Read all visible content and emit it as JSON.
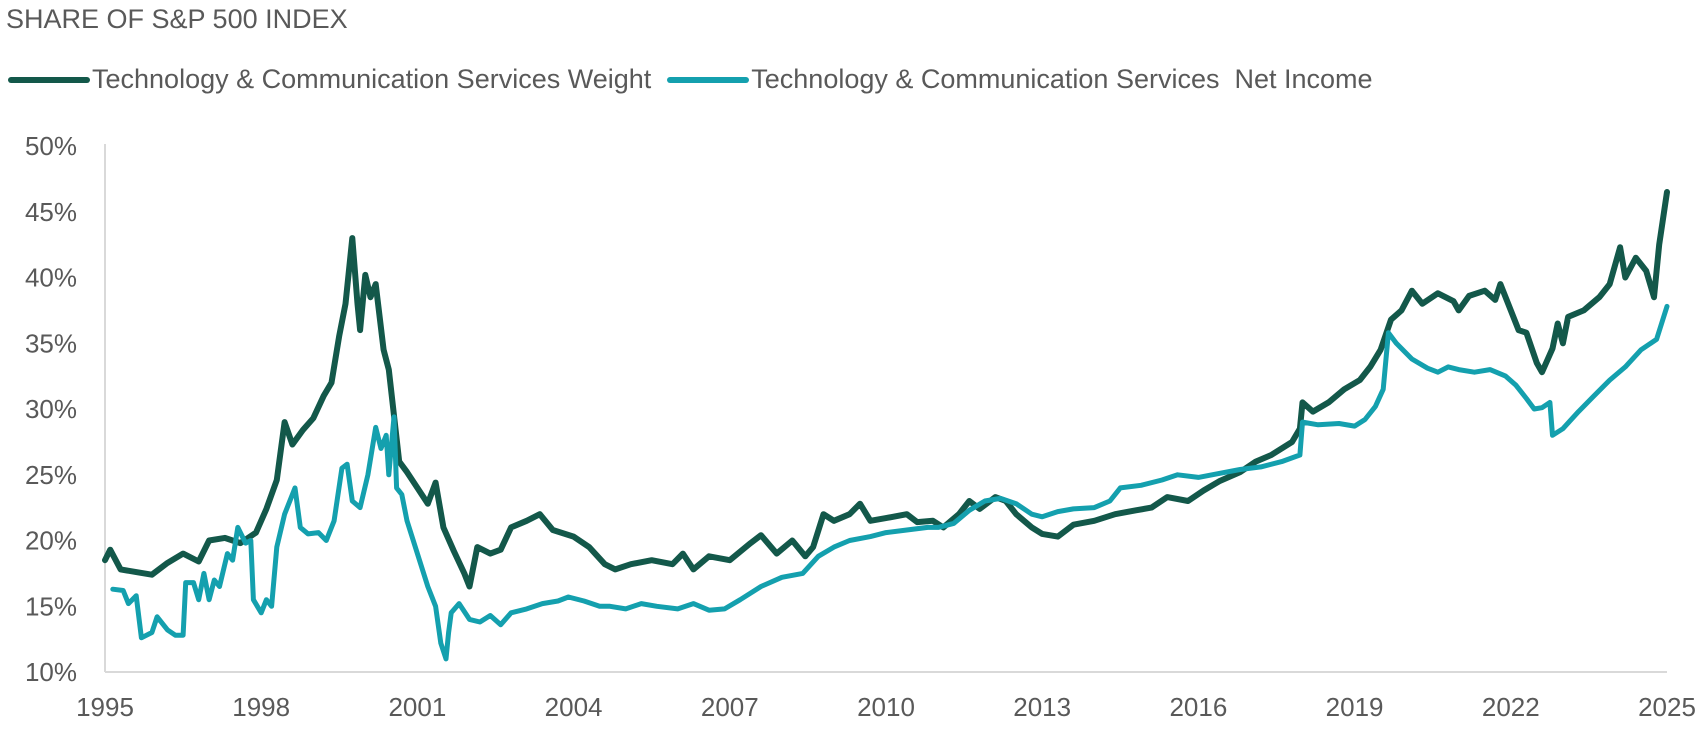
{
  "chart_data": {
    "type": "line",
    "title": "SHARE OF S&P 500 INDEX",
    "xlabel": "",
    "ylabel": "",
    "xlim": [
      1995,
      2025
    ],
    "ylim": [
      10,
      50
    ],
    "x_ticks": [
      "1995",
      "1998",
      "2001",
      "2004",
      "2007",
      "2010",
      "2013",
      "2016",
      "2019",
      "2022",
      "2025"
    ],
    "y_ticks": [
      "10%",
      "15%",
      "20%",
      "25%",
      "30%",
      "35%",
      "40%",
      "45%",
      "50%"
    ],
    "grid": false,
    "legend_position": "top-left",
    "series": [
      {
        "name": "Technology & Communication Services Weight",
        "color": "#13584a",
        "points": [
          [
            1995.0,
            18.5
          ],
          [
            1995.1,
            19.3
          ],
          [
            1995.3,
            17.8
          ],
          [
            1995.6,
            17.6
          ],
          [
            1995.9,
            17.4
          ],
          [
            1996.2,
            18.3
          ],
          [
            1996.5,
            19.0
          ],
          [
            1996.8,
            18.4
          ],
          [
            1997.0,
            20.0
          ],
          [
            1997.3,
            20.2
          ],
          [
            1997.6,
            19.8
          ],
          [
            1997.9,
            20.6
          ],
          [
            1998.1,
            22.4
          ],
          [
            1998.3,
            24.6
          ],
          [
            1998.45,
            29.0
          ],
          [
            1998.6,
            27.3
          ],
          [
            1998.8,
            28.4
          ],
          [
            1999.0,
            29.3
          ],
          [
            1999.2,
            31.0
          ],
          [
            1999.35,
            32.0
          ],
          [
            1999.5,
            35.6
          ],
          [
            1999.62,
            38.0
          ],
          [
            1999.75,
            43.0
          ],
          [
            1999.85,
            38.0
          ],
          [
            1999.9,
            36.0
          ],
          [
            2000.0,
            40.2
          ],
          [
            2000.1,
            38.5
          ],
          [
            2000.2,
            39.5
          ],
          [
            2000.35,
            34.5
          ],
          [
            2000.45,
            33.0
          ],
          [
            2000.55,
            29.5
          ],
          [
            2000.65,
            26.0
          ],
          [
            2000.8,
            25.2
          ],
          [
            2001.0,
            24.0
          ],
          [
            2001.2,
            22.8
          ],
          [
            2001.35,
            24.4
          ],
          [
            2001.5,
            21.0
          ],
          [
            2001.7,
            19.2
          ],
          [
            2001.9,
            17.5
          ],
          [
            2002.0,
            16.5
          ],
          [
            2002.15,
            19.5
          ],
          [
            2002.4,
            19.0
          ],
          [
            2002.6,
            19.3
          ],
          [
            2002.8,
            21.0
          ],
          [
            2003.1,
            21.5
          ],
          [
            2003.35,
            22.0
          ],
          [
            2003.6,
            20.8
          ],
          [
            2004.0,
            20.3
          ],
          [
            2004.3,
            19.5
          ],
          [
            2004.6,
            18.2
          ],
          [
            2004.8,
            17.8
          ],
          [
            2005.1,
            18.2
          ],
          [
            2005.5,
            18.5
          ],
          [
            2005.9,
            18.2
          ],
          [
            2006.1,
            19.0
          ],
          [
            2006.3,
            17.8
          ],
          [
            2006.6,
            18.8
          ],
          [
            2007.0,
            18.5
          ],
          [
            2007.4,
            19.8
          ],
          [
            2007.6,
            20.4
          ],
          [
            2007.9,
            19.0
          ],
          [
            2008.2,
            20.0
          ],
          [
            2008.45,
            18.8
          ],
          [
            2008.6,
            19.5
          ],
          [
            2008.8,
            22.0
          ],
          [
            2009.0,
            21.5
          ],
          [
            2009.3,
            22.0
          ],
          [
            2009.5,
            22.8
          ],
          [
            2009.7,
            21.5
          ],
          [
            2010.0,
            21.7
          ],
          [
            2010.4,
            22.0
          ],
          [
            2010.6,
            21.4
          ],
          [
            2010.9,
            21.5
          ],
          [
            2011.1,
            21.0
          ],
          [
            2011.4,
            22.0
          ],
          [
            2011.6,
            23.0
          ],
          [
            2011.8,
            22.4
          ],
          [
            2012.1,
            23.3
          ],
          [
            2012.3,
            23.0
          ],
          [
            2012.5,
            22.0
          ],
          [
            2012.8,
            21.0
          ],
          [
            2013.0,
            20.5
          ],
          [
            2013.3,
            20.3
          ],
          [
            2013.6,
            21.2
          ],
          [
            2014.0,
            21.5
          ],
          [
            2014.4,
            22.0
          ],
          [
            2014.8,
            22.3
          ],
          [
            2015.1,
            22.5
          ],
          [
            2015.4,
            23.3
          ],
          [
            2015.8,
            23.0
          ],
          [
            2016.1,
            23.8
          ],
          [
            2016.4,
            24.5
          ],
          [
            2016.8,
            25.2
          ],
          [
            2017.1,
            26.0
          ],
          [
            2017.4,
            26.5
          ],
          [
            2017.8,
            27.5
          ],
          [
            2017.95,
            28.5
          ],
          [
            2018.0,
            30.5
          ],
          [
            2018.2,
            29.8
          ],
          [
            2018.5,
            30.5
          ],
          [
            2018.8,
            31.5
          ],
          [
            2019.1,
            32.2
          ],
          [
            2019.3,
            33.2
          ],
          [
            2019.5,
            34.5
          ],
          [
            2019.7,
            36.8
          ],
          [
            2019.9,
            37.5
          ],
          [
            2020.1,
            39.0
          ],
          [
            2020.3,
            38.0
          ],
          [
            2020.6,
            38.8
          ],
          [
            2020.9,
            38.2
          ],
          [
            2021.0,
            37.5
          ],
          [
            2021.2,
            38.6
          ],
          [
            2021.5,
            39.0
          ],
          [
            2021.7,
            38.3
          ],
          [
            2021.8,
            39.5
          ],
          [
            2022.0,
            37.5
          ],
          [
            2022.15,
            36.0
          ],
          [
            2022.3,
            35.8
          ],
          [
            2022.5,
            33.5
          ],
          [
            2022.6,
            32.8
          ],
          [
            2022.8,
            34.6
          ],
          [
            2022.9,
            36.5
          ],
          [
            2023.0,
            35.0
          ],
          [
            2023.1,
            37.0
          ],
          [
            2023.4,
            37.5
          ],
          [
            2023.7,
            38.5
          ],
          [
            2023.9,
            39.5
          ],
          [
            2024.1,
            42.3
          ],
          [
            2024.2,
            40.0
          ],
          [
            2024.4,
            41.5
          ],
          [
            2024.6,
            40.5
          ],
          [
            2024.75,
            38.5
          ],
          [
            2024.85,
            42.5
          ],
          [
            2025.0,
            46.5
          ]
        ]
      },
      {
        "name": "Technology & Communication Services  Net Income",
        "color": "#14a0ae",
        "points": [
          [
            1995.15,
            16.3
          ],
          [
            1995.35,
            16.2
          ],
          [
            1995.45,
            15.2
          ],
          [
            1995.6,
            15.8
          ],
          [
            1995.7,
            12.6
          ],
          [
            1995.9,
            13.0
          ],
          [
            1996.0,
            14.2
          ],
          [
            1996.2,
            13.2
          ],
          [
            1996.35,
            12.8
          ],
          [
            1996.5,
            12.8
          ],
          [
            1996.55,
            16.8
          ],
          [
            1996.7,
            16.8
          ],
          [
            1996.8,
            15.5
          ],
          [
            1996.9,
            17.5
          ],
          [
            1997.0,
            15.5
          ],
          [
            1997.1,
            17.0
          ],
          [
            1997.2,
            16.5
          ],
          [
            1997.35,
            19.0
          ],
          [
            1997.45,
            18.5
          ],
          [
            1997.55,
            21.0
          ],
          [
            1997.7,
            19.8
          ],
          [
            1997.8,
            20.0
          ],
          [
            1997.85,
            15.5
          ],
          [
            1998.0,
            14.5
          ],
          [
            1998.1,
            15.5
          ],
          [
            1998.2,
            15.0
          ],
          [
            1998.3,
            19.5
          ],
          [
            1998.45,
            22.0
          ],
          [
            1998.65,
            24.0
          ],
          [
            1998.75,
            21.0
          ],
          [
            1998.9,
            20.5
          ],
          [
            1999.1,
            20.6
          ],
          [
            1999.25,
            20.0
          ],
          [
            1999.4,
            21.5
          ],
          [
            1999.55,
            25.5
          ],
          [
            1999.65,
            25.8
          ],
          [
            1999.75,
            23.0
          ],
          [
            1999.9,
            22.5
          ],
          [
            2000.05,
            25.0
          ],
          [
            2000.2,
            28.6
          ],
          [
            2000.3,
            27.0
          ],
          [
            2000.4,
            28.0
          ],
          [
            2000.45,
            25.0
          ],
          [
            2000.55,
            29.4
          ],
          [
            2000.6,
            24.0
          ],
          [
            2000.7,
            23.5
          ],
          [
            2000.8,
            21.5
          ],
          [
            2001.0,
            19.0
          ],
          [
            2001.2,
            16.5
          ],
          [
            2001.35,
            15.0
          ],
          [
            2001.45,
            12.2
          ],
          [
            2001.55,
            11.0
          ],
          [
            2001.6,
            13.0
          ],
          [
            2001.65,
            14.5
          ],
          [
            2001.8,
            15.2
          ],
          [
            2002.0,
            14.0
          ],
          [
            2002.2,
            13.8
          ],
          [
            2002.4,
            14.3
          ],
          [
            2002.6,
            13.6
          ],
          [
            2002.8,
            14.5
          ],
          [
            2003.1,
            14.8
          ],
          [
            2003.4,
            15.2
          ],
          [
            2003.7,
            15.4
          ],
          [
            2003.9,
            15.7
          ],
          [
            2004.2,
            15.4
          ],
          [
            2004.5,
            15.0
          ],
          [
            2004.7,
            15.0
          ],
          [
            2005.0,
            14.8
          ],
          [
            2005.3,
            15.2
          ],
          [
            2005.6,
            15.0
          ],
          [
            2006.0,
            14.8
          ],
          [
            2006.3,
            15.2
          ],
          [
            2006.6,
            14.7
          ],
          [
            2006.9,
            14.8
          ],
          [
            2007.2,
            15.5
          ],
          [
            2007.6,
            16.5
          ],
          [
            2008.0,
            17.2
          ],
          [
            2008.4,
            17.5
          ],
          [
            2008.7,
            18.8
          ],
          [
            2009.0,
            19.5
          ],
          [
            2009.3,
            20.0
          ],
          [
            2009.7,
            20.3
          ],
          [
            2010.0,
            20.6
          ],
          [
            2010.4,
            20.8
          ],
          [
            2010.8,
            21.0
          ],
          [
            2011.0,
            21.0
          ],
          [
            2011.3,
            21.3
          ],
          [
            2011.6,
            22.3
          ],
          [
            2011.9,
            23.0
          ],
          [
            2012.2,
            23.2
          ],
          [
            2012.5,
            22.8
          ],
          [
            2012.8,
            22.0
          ],
          [
            2013.0,
            21.8
          ],
          [
            2013.3,
            22.2
          ],
          [
            2013.6,
            22.4
          ],
          [
            2014.0,
            22.5
          ],
          [
            2014.3,
            23.0
          ],
          [
            2014.5,
            24.0
          ],
          [
            2014.9,
            24.2
          ],
          [
            2015.3,
            24.6
          ],
          [
            2015.6,
            25.0
          ],
          [
            2016.0,
            24.8
          ],
          [
            2016.4,
            25.1
          ],
          [
            2016.8,
            25.4
          ],
          [
            2017.2,
            25.6
          ],
          [
            2017.6,
            26.0
          ],
          [
            2017.95,
            26.5
          ],
          [
            2018.0,
            29.0
          ],
          [
            2018.3,
            28.8
          ],
          [
            2018.7,
            28.9
          ],
          [
            2019.0,
            28.7
          ],
          [
            2019.2,
            29.2
          ],
          [
            2019.4,
            30.2
          ],
          [
            2019.55,
            31.5
          ],
          [
            2019.65,
            35.8
          ],
          [
            2019.8,
            35.0
          ],
          [
            2020.1,
            33.8
          ],
          [
            2020.4,
            33.1
          ],
          [
            2020.6,
            32.8
          ],
          [
            2020.8,
            33.2
          ],
          [
            2021.0,
            33.0
          ],
          [
            2021.3,
            32.8
          ],
          [
            2021.6,
            33.0
          ],
          [
            2021.9,
            32.5
          ],
          [
            2022.1,
            31.8
          ],
          [
            2022.3,
            30.8
          ],
          [
            2022.45,
            30.0
          ],
          [
            2022.6,
            30.1
          ],
          [
            2022.75,
            30.5
          ],
          [
            2022.8,
            28.0
          ],
          [
            2023.0,
            28.5
          ],
          [
            2023.3,
            29.8
          ],
          [
            2023.6,
            31.0
          ],
          [
            2023.9,
            32.2
          ],
          [
            2024.2,
            33.2
          ],
          [
            2024.5,
            34.5
          ],
          [
            2024.8,
            35.3
          ],
          [
            2025.0,
            37.8
          ]
        ]
      }
    ]
  }
}
